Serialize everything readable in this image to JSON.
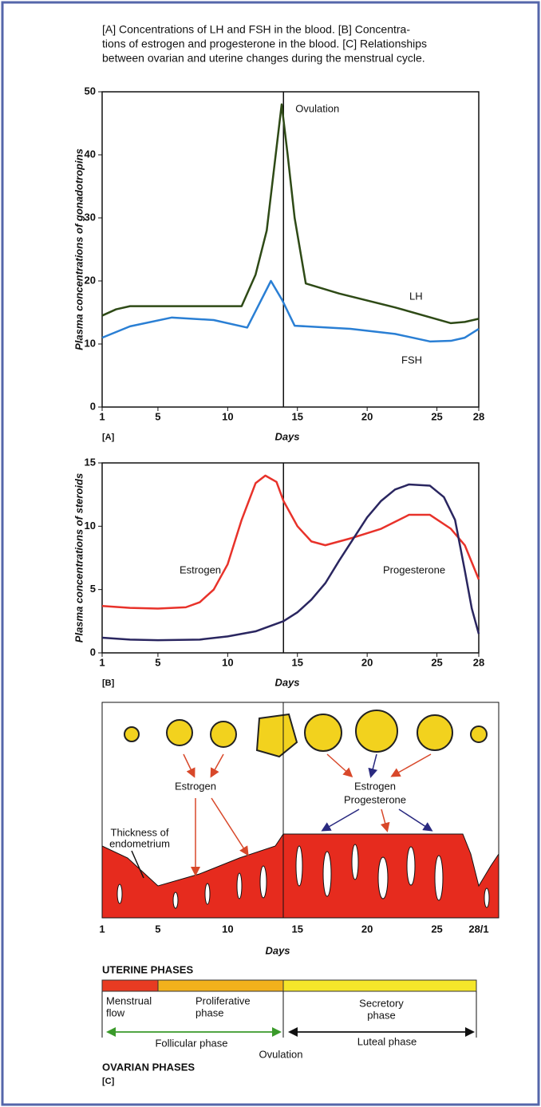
{
  "caption": [
    "[A] Concentrations of LH and FSH in the blood. [B] Concentra-",
    "tions of estrogen and progesterone in the blood. [C] Relationships",
    "between ovarian and uterine changes during the menstrual cycle."
  ],
  "chart_data": [
    {
      "type": "line",
      "panel": "[A]",
      "y_label": "Plasma concentrations of gonadotropins",
      "x_label": "Days",
      "xlim": [
        1,
        28
      ],
      "xticks": [
        1,
        5,
        10,
        15,
        20,
        25,
        28
      ],
      "ylim": [
        0,
        50
      ],
      "yticks": [
        0,
        10,
        20,
        30,
        40,
        50
      ],
      "annotations": [
        {
          "text": "Ovulation",
          "x": 14
        }
      ],
      "series": [
        {
          "name": "LH",
          "color": "#2e4a16",
          "x": [
            1,
            2,
            3,
            5,
            8,
            11,
            12,
            12.8,
            13.87,
            14.3,
            14.8,
            15.6,
            18,
            22,
            26,
            27,
            28
          ],
          "values": [
            14.5,
            15.5,
            16,
            16,
            16,
            16,
            21,
            28,
            48,
            40,
            30,
            19.6,
            18,
            15.8,
            13.3,
            13.5,
            14
          ]
        },
        {
          "name": "FSH",
          "color": "#2a7fd4",
          "x": [
            1,
            3,
            6,
            9,
            11.4,
            13.1,
            13.9,
            14.8,
            18.8,
            22,
            24.5,
            26,
            27,
            28
          ],
          "values": [
            11,
            12.8,
            14.2,
            13.8,
            12.6,
            20,
            17,
            12.9,
            12.4,
            11.6,
            10.4,
            10.5,
            11,
            12.4
          ]
        }
      ]
    },
    {
      "type": "line",
      "panel": "[B]",
      "y_label": "Plasma concentrations of steroids",
      "x_label": "Days",
      "xlim": [
        1,
        28
      ],
      "xticks": [
        1,
        5,
        10,
        15,
        20,
        25,
        28
      ],
      "ylim": [
        0,
        15
      ],
      "yticks": [
        0,
        5,
        10,
        15
      ],
      "annotations": [
        {
          "text": "",
          "x": 14
        }
      ],
      "series": [
        {
          "name": "Estrogen",
          "color": "#e8322a",
          "x": [
            1,
            3,
            5,
            7,
            8,
            9,
            10,
            11,
            12,
            12.7,
            13.5,
            14,
            15,
            16,
            17,
            19,
            21,
            23,
            24.5,
            26,
            27,
            28
          ],
          "values": [
            3.7,
            3.55,
            3.5,
            3.6,
            4,
            5,
            7,
            10.5,
            13.4,
            14,
            13.5,
            12,
            10,
            8.8,
            8.5,
            9.1,
            9.8,
            10.9,
            10.9,
            9.8,
            8.5,
            5.8
          ]
        },
        {
          "name": "Progesterone",
          "color": "#2a2660",
          "x": [
            1,
            3,
            5,
            8,
            10,
            12,
            13,
            14,
            15,
            16,
            17,
            18,
            19,
            20,
            21,
            22,
            23,
            24.5,
            25.5,
            26.3,
            27,
            27.5,
            28
          ],
          "values": [
            1.2,
            1.05,
            1,
            1.05,
            1.3,
            1.7,
            2.1,
            2.5,
            3.2,
            4.2,
            5.5,
            7.3,
            9,
            10.7,
            12,
            12.9,
            13.3,
            13.2,
            12.3,
            10.5,
            6.5,
            3.5,
            1.5
          ]
        }
      ]
    }
  ],
  "panel_c": {
    "follicle_labels": [
      "Estrogen",
      "Estrogen",
      "Progesterone"
    ],
    "thickness_label": [
      "Thickness of",
      "endometrium"
    ],
    "day_ticks": [
      "1",
      "5",
      "10",
      "15",
      "20",
      "25",
      "28/1"
    ],
    "x_label": "Days",
    "uterine_header": "UTERINE PHASES",
    "menstrual": [
      "Menstrual",
      "flow"
    ],
    "proliferative": [
      "Proliferative",
      "phase"
    ],
    "secretory": [
      "Secretory",
      "phase"
    ],
    "follicular": "Follicular phase",
    "luteal": "Luteal phase",
    "ovulation": "Ovulation",
    "ovarian_header": "OVARIAN PHASES",
    "panel": "[C]"
  }
}
